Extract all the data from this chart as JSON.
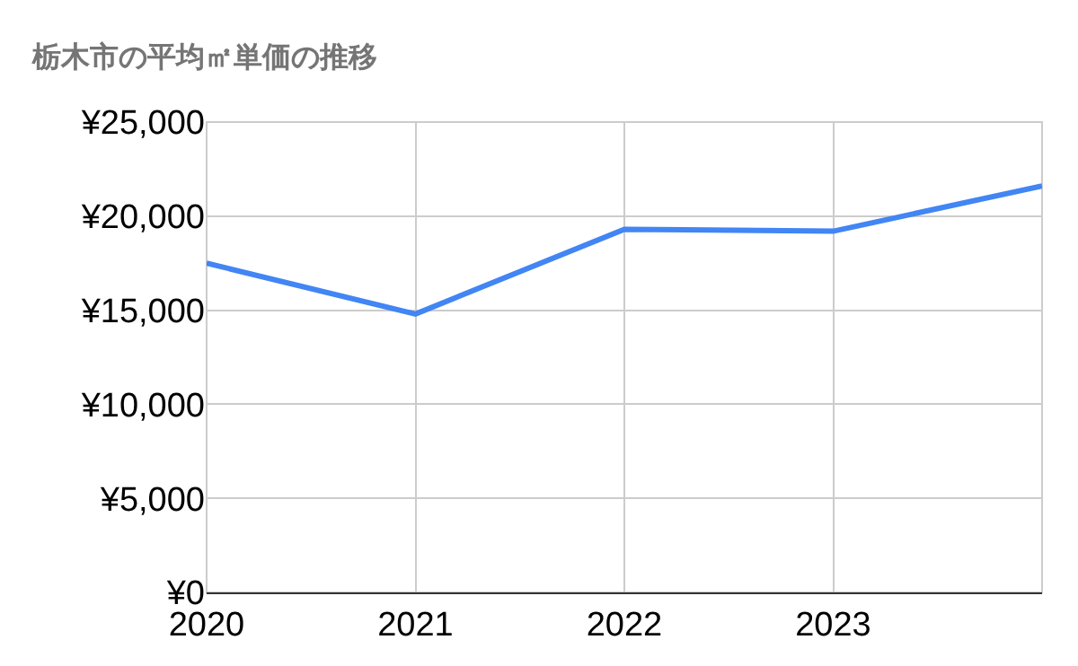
{
  "chart_data": {
    "type": "line",
    "title": "栃木市の平均㎡単価の推移",
    "x": [
      2020,
      2021,
      2022,
      2023,
      2024
    ],
    "series": [
      {
        "color": "#4285f4",
        "values": [
          17500,
          14800,
          19300,
          19200,
          21600
        ]
      }
    ],
    "xlim": [
      2020,
      2024
    ],
    "xticks": [
      2020,
      2021,
      2022,
      2023
    ],
    "ylim": [
      0,
      25000
    ],
    "yticks": [
      {
        "value": 0,
        "label": "¥0"
      },
      {
        "value": 5000,
        "label": "¥5,000"
      },
      {
        "value": 10000,
        "label": "¥10,000"
      },
      {
        "value": 15000,
        "label": "¥15,000"
      },
      {
        "value": 20000,
        "label": "¥20,000"
      },
      {
        "value": 25000,
        "label": "¥25,000"
      }
    ],
    "grid": true,
    "legend": false,
    "marker": "none",
    "line_style": "solid"
  }
}
